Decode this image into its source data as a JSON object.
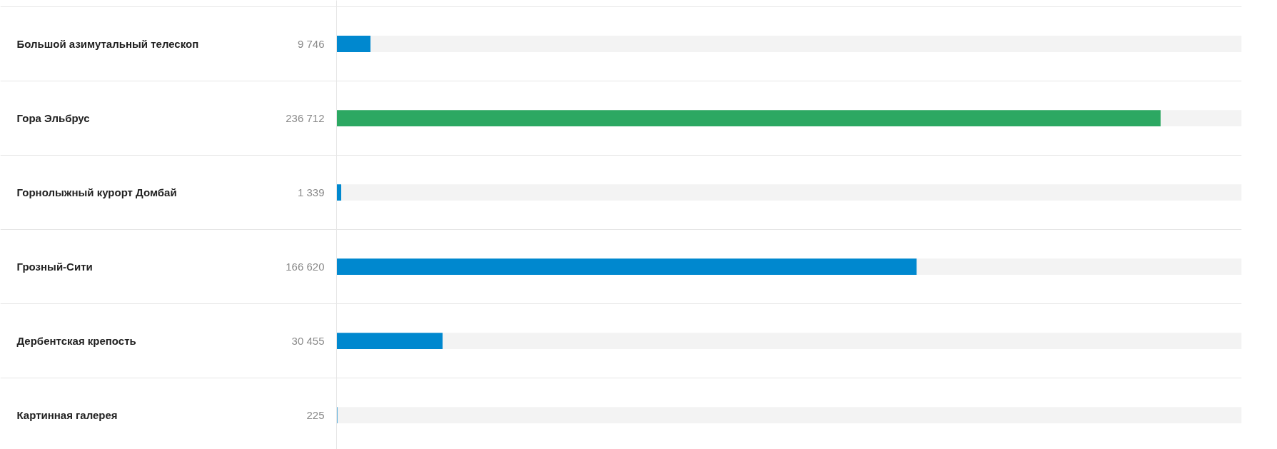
{
  "chart_data": {
    "type": "bar",
    "orientation": "horizontal",
    "categories": [
      "Большой азимутальный телескоп",
      "Гора Эльбрус",
      "Горнолыжный курорт Домбай",
      "Грозный-Сити",
      "Дербентская крепость",
      "Картинная галерея"
    ],
    "values": [
      9746,
      236712,
      1339,
      166620,
      30455,
      225
    ],
    "value_labels": [
      "9 746",
      "236 712",
      "1 339",
      "166 620",
      "30 455",
      "225"
    ],
    "colors": [
      "#0088cf",
      "#2ca862",
      "#0088cf",
      "#0088cf",
      "#0088cf",
      "#0088cf"
    ],
    "xlim": [
      0,
      260000
    ],
    "grid": "y"
  }
}
